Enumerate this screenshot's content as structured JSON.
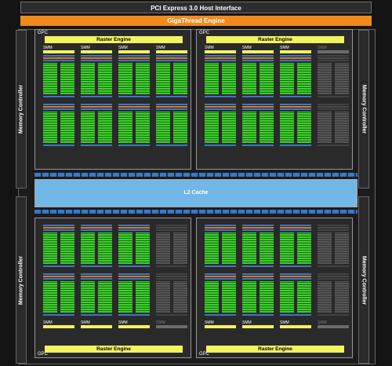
{
  "header": {
    "pcie": "PCI Express 3.0 Host Interface",
    "gigathread": "GigaThread Engine"
  },
  "memory_controller": "Memory Controller",
  "l2": "L2 Cache",
  "gpc_label": "GPC",
  "raster_label": "Raster Engine",
  "smm_label": "SMM",
  "colors": {
    "raster": "#f3f261",
    "cores": "#3fcf2f",
    "l2": "#72b7e6",
    "gigathread": "#f08a1c"
  },
  "gpcs": [
    {
      "id": "gpc-top-left",
      "smm_count_enabled": 4
    },
    {
      "id": "gpc-top-right",
      "smm_count_enabled": 3
    },
    {
      "id": "gpc-bottom-left",
      "smm_count_enabled": 3
    },
    {
      "id": "gpc-bottom-right",
      "smm_count_enabled": 3
    }
  ]
}
